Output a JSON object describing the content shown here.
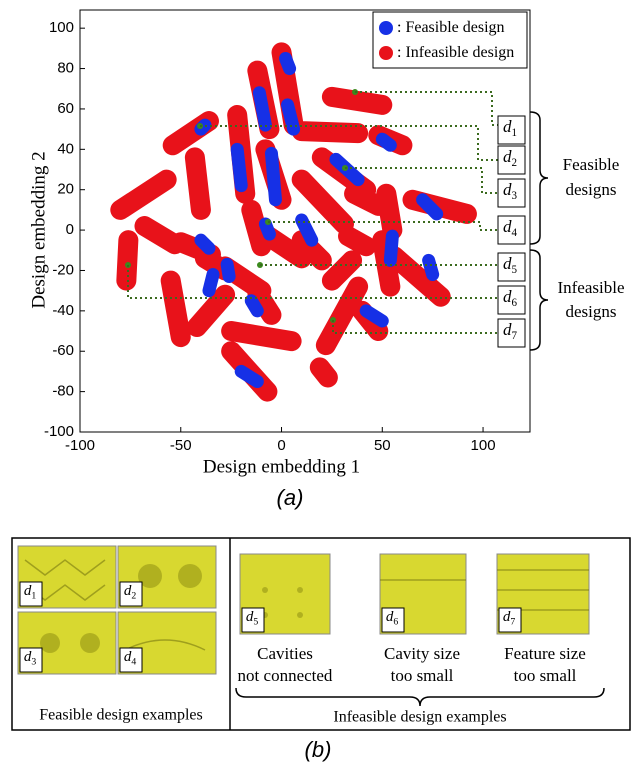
{
  "chart_data": {
    "type": "scatter",
    "x_label": "Design embedding 1",
    "y_label": "Design embedding 2",
    "xlim": [
      -100,
      123.3
    ],
    "ylim": [
      -100,
      109
    ],
    "xticks": [
      -100,
      -50,
      0,
      50,
      100
    ],
    "yticks": [
      -100,
      -80,
      -60,
      -40,
      -20,
      0,
      20,
      40,
      60,
      80,
      100
    ],
    "legend": "top-right",
    "legend_separator": ":",
    "series": [
      {
        "name": "Infeasible design",
        "color": "#e8121a",
        "x": [
          -80,
          -57,
          null,
          -54,
          -36,
          null,
          -43,
          -40,
          null,
          -68,
          -53,
          null,
          -50,
          -35,
          null,
          -22,
          -18,
          null,
          -12,
          -6,
          null,
          0,
          6,
          null,
          10,
          38,
          null,
          25,
          50,
          null,
          48,
          60,
          null,
          20,
          42,
          null,
          -8,
          0,
          null,
          -15,
          -10,
          null,
          10,
          31,
          null,
          36,
          48,
          null,
          52,
          55,
          null,
          65,
          92,
          null,
          56,
          79,
          null,
          50,
          54,
          null,
          33,
          42,
          null,
          -28,
          -10,
          null,
          -8,
          10,
          null,
          10,
          20,
          null,
          25,
          35,
          null,
          38,
          22,
          null,
          -76,
          -77,
          null,
          -55,
          -50,
          null,
          -42,
          -28,
          null,
          -12,
          -5,
          null,
          -25,
          5,
          null,
          -25,
          -7,
          null,
          19,
          23,
          null,
          40,
          48,
          null,
          -38,
          -28
        ],
        "y": [
          10,
          25,
          null,
          42,
          54,
          null,
          36,
          10,
          null,
          2,
          -7,
          null,
          -6,
          -12,
          null,
          57,
          18,
          null,
          79,
          50,
          null,
          88,
          52,
          null,
          49,
          48,
          null,
          66,
          62,
          null,
          47,
          42,
          null,
          36,
          20,
          null,
          40,
          15,
          null,
          10,
          -8,
          null,
          25,
          3,
          null,
          18,
          12,
          null,
          18,
          0,
          null,
          15,
          8,
          null,
          -13,
          -33,
          null,
          -5,
          -28,
          null,
          -3,
          -8,
          null,
          -18,
          -30,
          null,
          -2,
          -14,
          null,
          -5,
          -15,
          null,
          -25,
          -15,
          null,
          -28,
          -57,
          null,
          -5,
          -25,
          null,
          -25,
          -53,
          null,
          -48,
          -32,
          null,
          -31,
          -42,
          null,
          -50,
          -55,
          null,
          -60,
          -80,
          null,
          -68,
          -73,
          null,
          -40,
          -50,
          null,
          -14,
          -20
        ]
      },
      {
        "name": "Feasible design",
        "color": "#1630e6",
        "x": [
          2,
          4,
          null,
          3,
          6,
          null,
          -11,
          -8,
          null,
          -40,
          -38,
          null,
          -22,
          -20,
          null,
          -5,
          -3,
          null,
          -8,
          -6,
          null,
          -40,
          -36,
          null,
          -34,
          -36,
          null,
          -15,
          -12,
          null,
          10,
          15,
          null,
          27,
          38,
          null,
          50,
          54,
          null,
          70,
          77,
          null,
          55,
          54,
          null,
          73,
          75,
          null,
          42,
          50,
          null,
          -20,
          -12,
          null,
          -27,
          -26
        ],
        "y": [
          85,
          80,
          null,
          62,
          50,
          null,
          68,
          52,
          null,
          50,
          52,
          null,
          40,
          22,
          null,
          38,
          15,
          null,
          3,
          -2,
          null,
          -5,
          -9,
          null,
          -22,
          -30,
          null,
          -35,
          -40,
          null,
          5,
          -5,
          null,
          35,
          25,
          null,
          45,
          42,
          null,
          15,
          8,
          null,
          -3,
          -15,
          null,
          -15,
          -22,
          null,
          -40,
          -45,
          null,
          -70,
          -75,
          null,
          -17,
          -23
        ]
      }
    ]
  },
  "annotations": {
    "design_labels": [
      {
        "var": "d",
        "sub": "1"
      },
      {
        "var": "d",
        "sub": "2"
      },
      {
        "var": "d",
        "sub": "3"
      },
      {
        "var": "d",
        "sub": "4"
      },
      {
        "var": "d",
        "sub": "5"
      },
      {
        "var": "d",
        "sub": "6"
      },
      {
        "var": "d",
        "sub": "7"
      }
    ],
    "feasible_group": [
      "Feasible",
      "designs"
    ],
    "infeasible_group": [
      "Infeasible",
      "designs"
    ]
  },
  "panel_labels": [
    "(a)",
    "(b)"
  ],
  "panel_b": {
    "feasible_labels": [
      {
        "var": "d",
        "sub": "1"
      },
      {
        "var": "d",
        "sub": "2"
      },
      {
        "var": "d",
        "sub": "3"
      },
      {
        "var": "d",
        "sub": "4"
      }
    ],
    "feasible_caption": "Feasible design examples",
    "infeasible": [
      {
        "var": "d",
        "sub": "5",
        "caption": [
          "Cavities",
          "not connected"
        ]
      },
      {
        "var": "d",
        "sub": "6",
        "caption": [
          "Cavity size",
          "too small"
        ]
      },
      {
        "var": "d",
        "sub": "7",
        "caption": [
          "Feature size",
          "too small"
        ]
      }
    ],
    "infeasible_caption": "Infeasible design examples"
  }
}
